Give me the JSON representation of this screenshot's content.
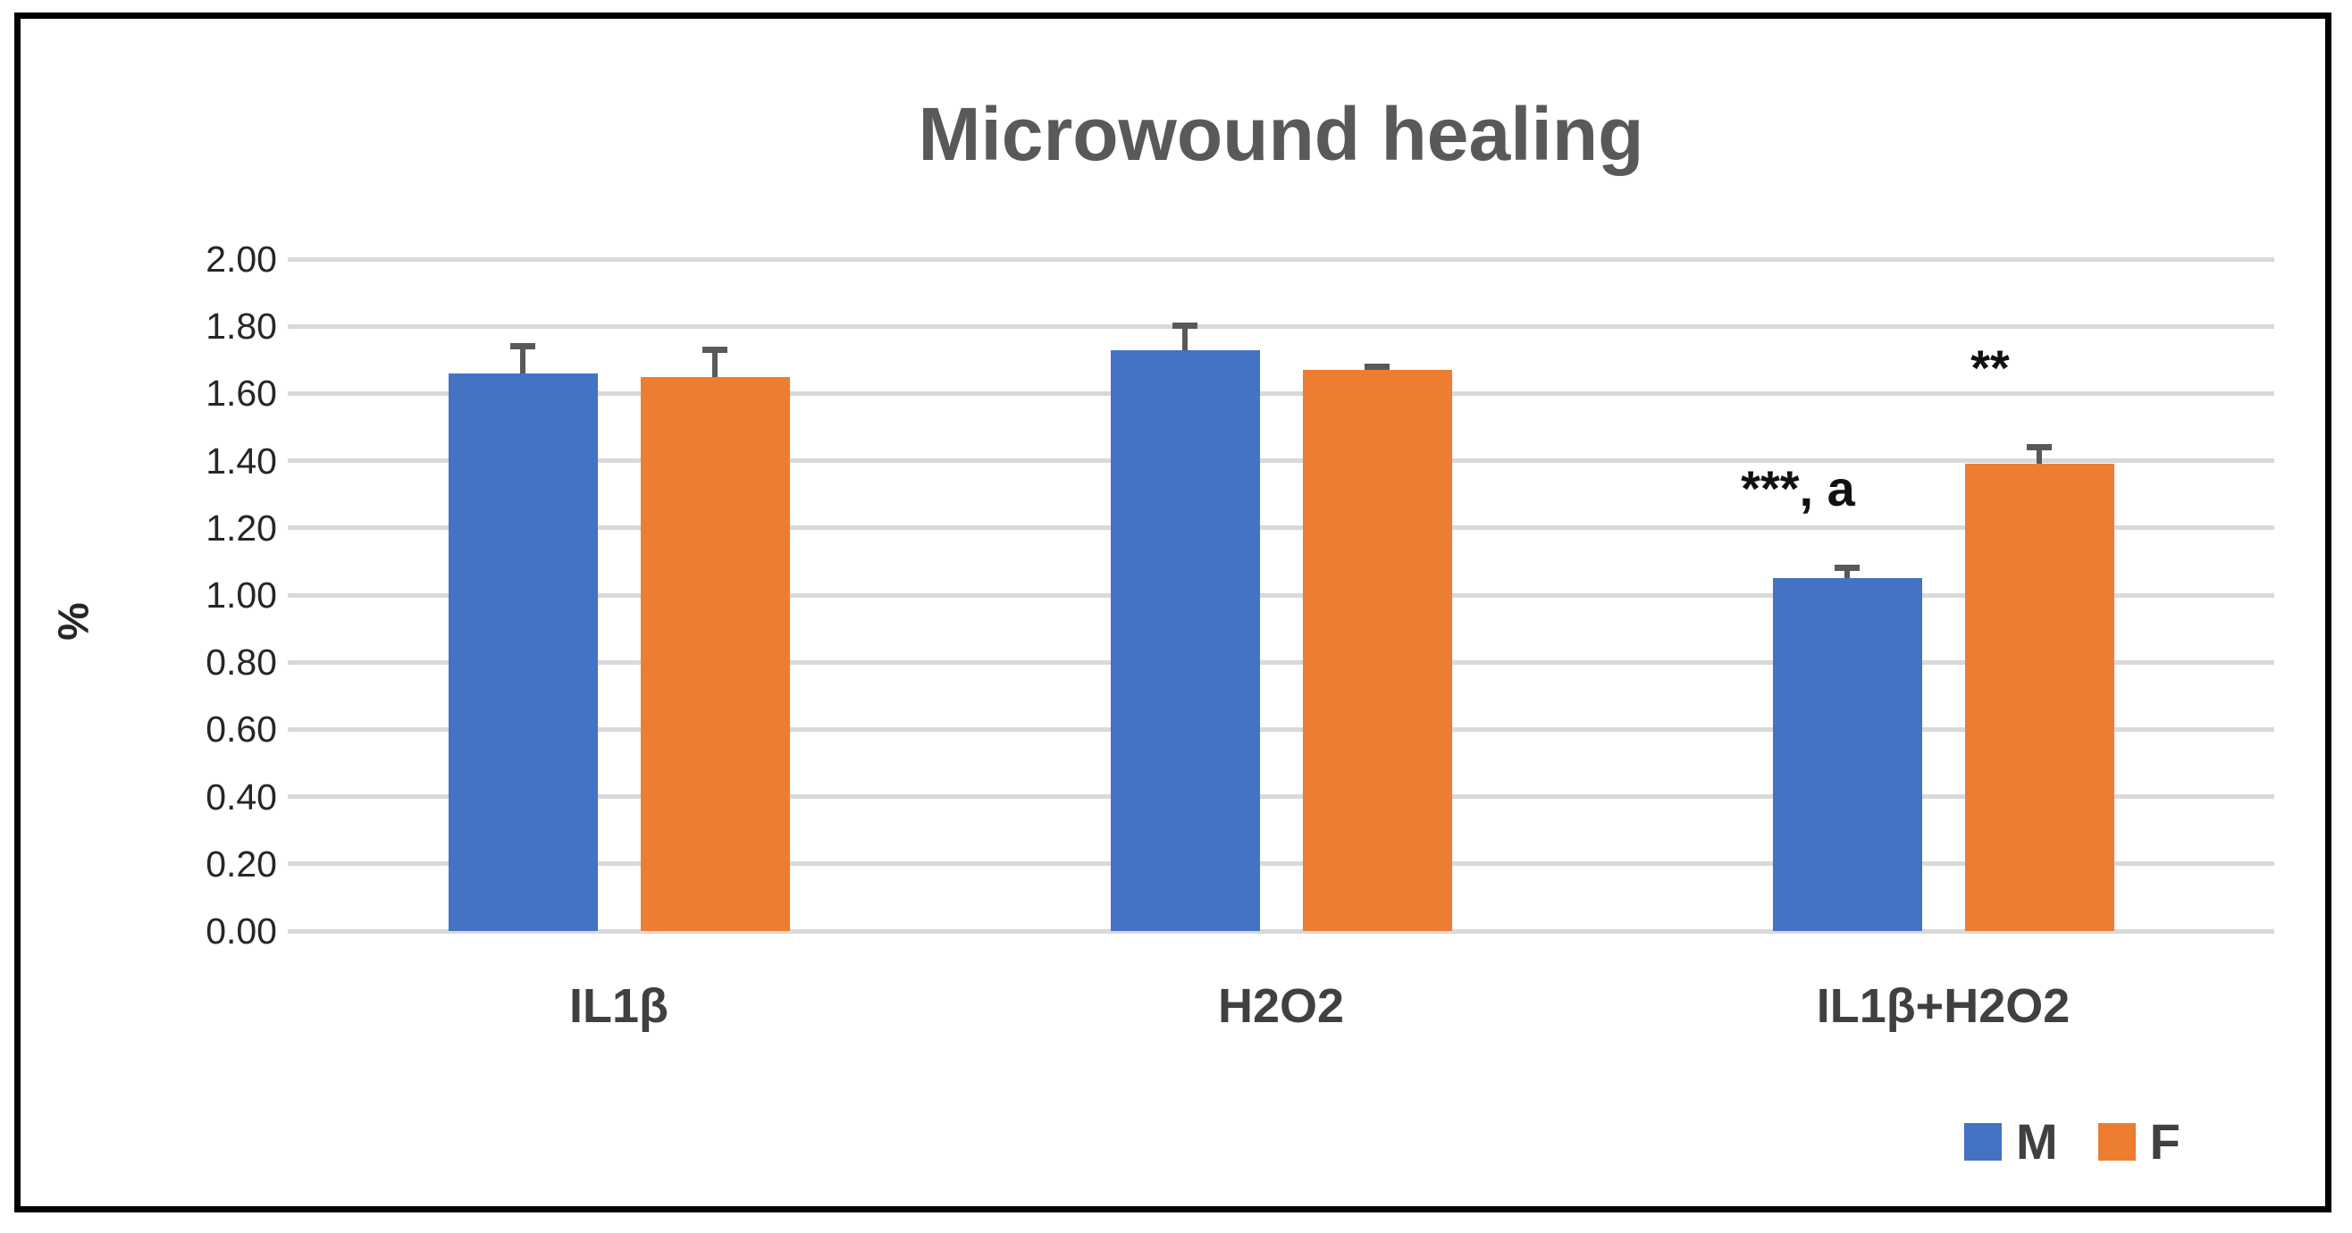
{
  "chart_data": {
    "type": "bar",
    "title": "Microwound healing",
    "xlabel": "",
    "ylabel": "%",
    "categories": [
      "IL1β",
      "H2O2",
      "IL1β+H2O2"
    ],
    "series": [
      {
        "name": "M",
        "color": "#4472C4",
        "values": [
          1.66,
          1.73,
          1.05
        ],
        "errors": [
          0.09,
          0.08,
          0.04
        ]
      },
      {
        "name": "F",
        "color": "#ED7D31",
        "values": [
          1.65,
          1.67,
          1.39
        ],
        "errors": [
          0.09,
          0.02,
          0.06
        ]
      }
    ],
    "annotations": [
      {
        "text": "***, a",
        "category_index": 2,
        "series_index": 0
      },
      {
        "text": "**",
        "category_index": 2,
        "series_index": 1
      }
    ],
    "ylim": [
      0.0,
      2.0
    ],
    "ytick_step": 0.2,
    "ytick_labels": [
      "0.00",
      "0.20",
      "0.40",
      "0.60",
      "0.80",
      "1.00",
      "1.20",
      "1.40",
      "1.60",
      "1.80",
      "2.00"
    ],
    "grid": true,
    "legend_position": "bottom-right",
    "colors": {
      "grid": "#D9D9D9",
      "error_bar": "#595959",
      "title": "#595959",
      "tick_label": "#262626",
      "category_label": "#404040",
      "annotation": "#111111",
      "frame_border": "#000000",
      "background": "#FFFFFF"
    }
  }
}
